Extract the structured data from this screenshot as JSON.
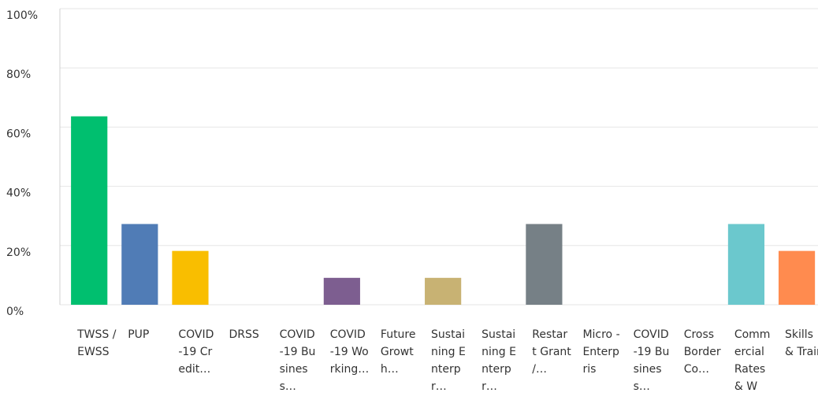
{
  "chart_data": {
    "type": "bar",
    "categories": [
      "TWSS / EWSS",
      "PUP",
      "COVID-19 Credit…",
      "DRSS",
      "COVID-19 Business…",
      "COVID-19 Working…",
      "Future Growth…",
      "Sustaining Enterpr…",
      "Sustaining Enterpr…",
      "Restart Grant /…",
      "Micro - Enterpris",
      "COVID-19 Business…",
      "Cross Border Co…",
      "Commercial Rates & Wa…",
      "Skills & Train"
    ],
    "values": [
      63.64,
      27.27,
      18.18,
      0,
      0,
      9.09,
      0,
      9.09,
      0,
      27.27,
      0,
      0,
      0,
      27.27,
      18.18
    ],
    "colors": [
      "#00bf6f",
      "#507cb6",
      "#f9be00",
      "#6bc8cd",
      "#ff8b4f",
      "#7d5e90",
      "#d25f90",
      "#c8b273",
      "#a0a0a0",
      "#768086",
      "#00bf6f",
      "#507cb6",
      "#f9be00",
      "#6bc8cd",
      "#ff8b4f"
    ],
    "ylim": [
      0,
      100
    ],
    "yticks": [
      {
        "value": 0,
        "label": "0%"
      },
      {
        "value": 20,
        "label": "20%"
      },
      {
        "value": 40,
        "label": "40%"
      },
      {
        "value": 60,
        "label": "60%"
      },
      {
        "value": 80,
        "label": "80%"
      },
      {
        "value": 100,
        "label": "100%"
      }
    ],
    "grid": true
  }
}
